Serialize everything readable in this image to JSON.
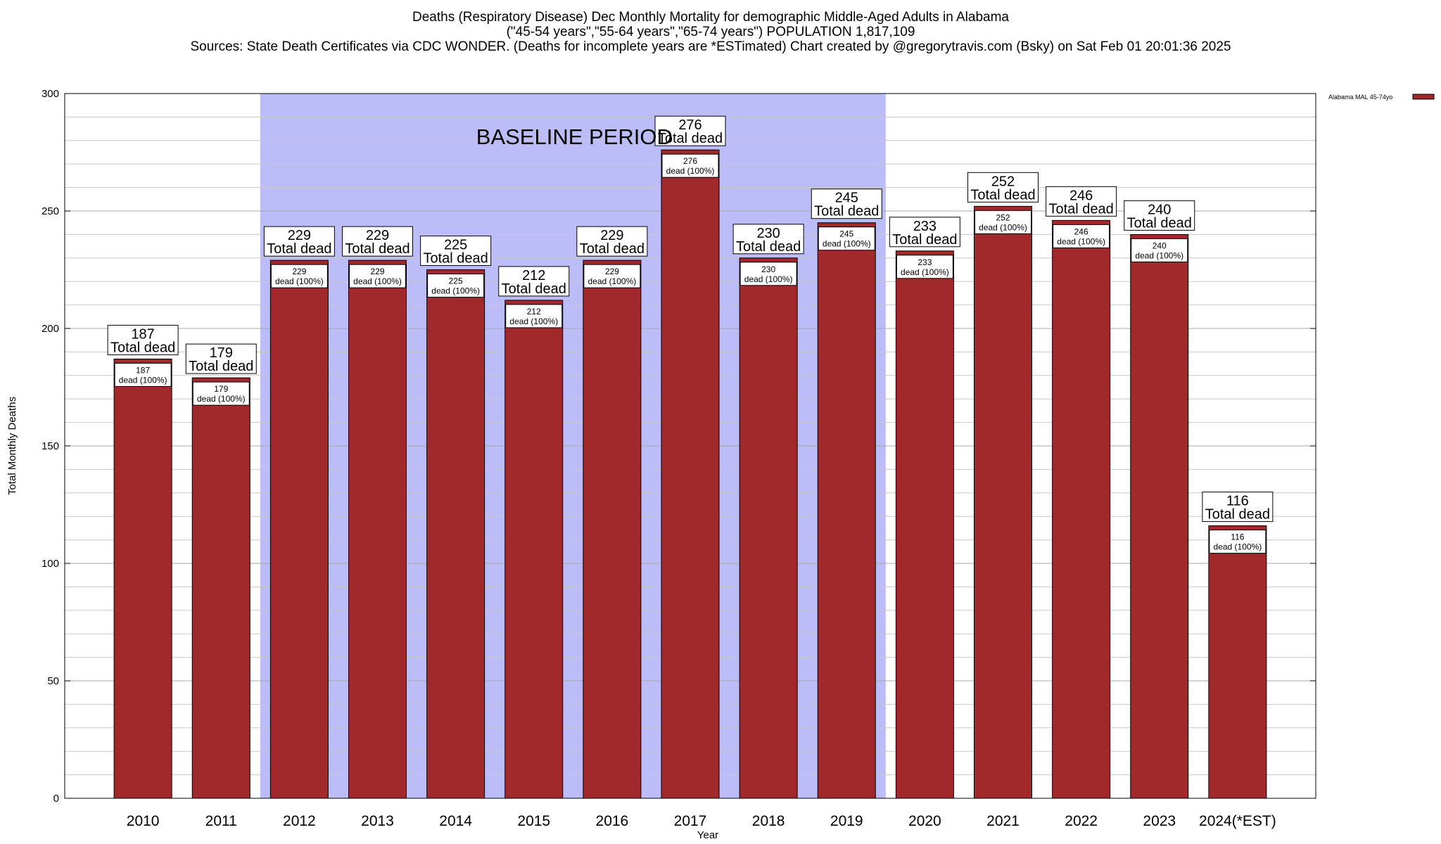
{
  "chart_data": {
    "type": "bar",
    "title_lines": [
      "Deaths (Respiratory Disease) Dec Monthly Mortality for demographic Middle-Aged Adults in Alabama",
      "(\"45-54 years\",\"55-64 years\",\"65-74 years\") POPULATION 1,817,109",
      "Sources: State Death Certificates via CDC WONDER. (Deaths for incomplete years are *ESTimated)                 Chart created by @gregorytravis.com (Bsky) on Sat Feb 01 20:01:36 2025"
    ],
    "xlabel": "Year",
    "ylabel": "Total Monthly Deaths",
    "ylim": [
      0,
      300
    ],
    "yticks": [
      0,
      50,
      100,
      150,
      200,
      250,
      300
    ],
    "categories": [
      "2010",
      "2011",
      "2012",
      "2013",
      "2014",
      "2015",
      "2016",
      "2017",
      "2018",
      "2019",
      "2020",
      "2021",
      "2022",
      "2023",
      "2024(*EST)"
    ],
    "series": [
      {
        "name": "Alabama MAL 45-74yo",
        "color": "#a2292b",
        "values": [
          187,
          179,
          229,
          229,
          225,
          212,
          229,
          276,
          230,
          245,
          233,
          252,
          246,
          240,
          116
        ]
      }
    ],
    "total_label_suffix": "Total dead",
    "inner_label_suffix": "dead (100%)",
    "baseline": {
      "label": "BASELINE PERIOD",
      "start": "2012",
      "end": "2019",
      "color": "#bcbcf8"
    },
    "grid": true,
    "legend_position": "top-right"
  }
}
